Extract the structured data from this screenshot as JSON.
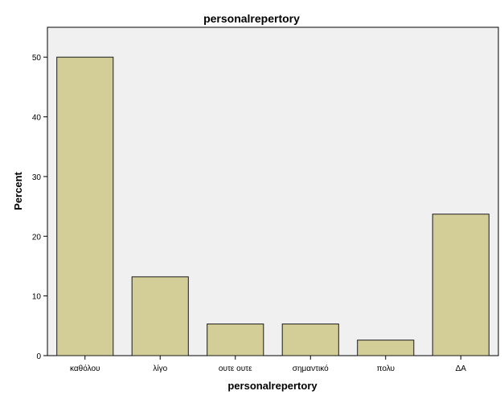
{
  "chart_data": {
    "type": "bar",
    "title": "personalrepertory",
    "xlabel": "personalrepertory",
    "ylabel": "Percent",
    "categories": [
      "καθόλου",
      "λίγο",
      "ουτε ουτε",
      "σημαντικό",
      "πολυ",
      "ΔΑ"
    ],
    "values": [
      50.0,
      13.2,
      5.3,
      5.3,
      2.6,
      23.7
    ],
    "ylim": [
      0,
      55
    ],
    "yticks": [
      0,
      10,
      20,
      30,
      40,
      50
    ],
    "grid": false,
    "legend": "none",
    "colors": {
      "plot_background": "#f0f0f0",
      "bar_fill": "#d3ce97",
      "bar_stroke": "#1a1a1a"
    }
  }
}
